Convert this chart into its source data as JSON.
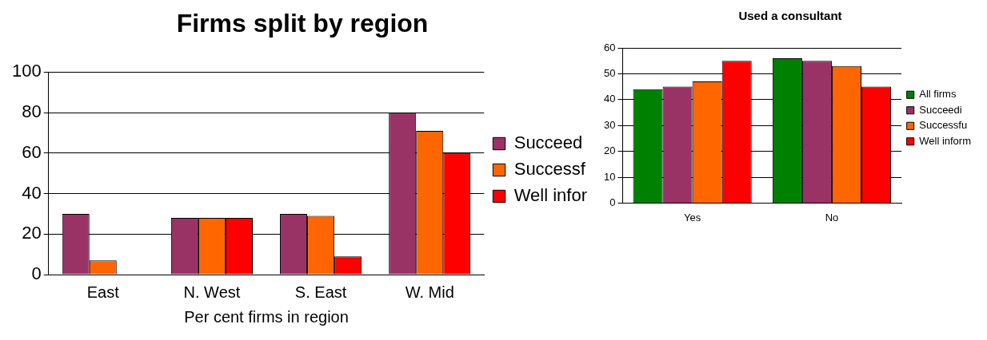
{
  "chart_data": [
    {
      "type": "bar",
      "title": "Firms split by region",
      "xlabel": "Per cent firms in region",
      "categories": [
        "East",
        "N. West",
        "S. East",
        "W. Mid"
      ],
      "series": [
        {
          "name": "Succeed",
          "color": "#993366",
          "values": [
            30,
            28,
            30,
            80
          ]
        },
        {
          "name": "Successf",
          "color": "#ff6600",
          "values": [
            7,
            28,
            29,
            71
          ]
        },
        {
          "name": "Well infor",
          "color": "#ff0000",
          "values": [
            null,
            28,
            9,
            60
          ]
        }
      ],
      "ylim": [
        0,
        100
      ],
      "yticks": [
        0,
        20,
        40,
        60,
        80,
        100
      ],
      "grid": "y",
      "legend": "right"
    },
    {
      "type": "bar",
      "title": "Used a consultant",
      "categories": [
        "Yes",
        "No"
      ],
      "series": [
        {
          "name": "All firms",
          "color": "#008000",
          "values": [
            44,
            56
          ]
        },
        {
          "name": "Succeedi",
          "color": "#993366",
          "values": [
            45,
            55
          ]
        },
        {
          "name": "Successfu",
          "color": "#ff6600",
          "values": [
            47,
            53
          ]
        },
        {
          "name": "Well inform",
          "color": "#ff0000",
          "values": [
            55,
            45
          ]
        }
      ],
      "ylim": [
        0,
        60
      ],
      "yticks": [
        0,
        10,
        20,
        30,
        40,
        50,
        60
      ],
      "grid": "y",
      "legend": "right"
    }
  ]
}
